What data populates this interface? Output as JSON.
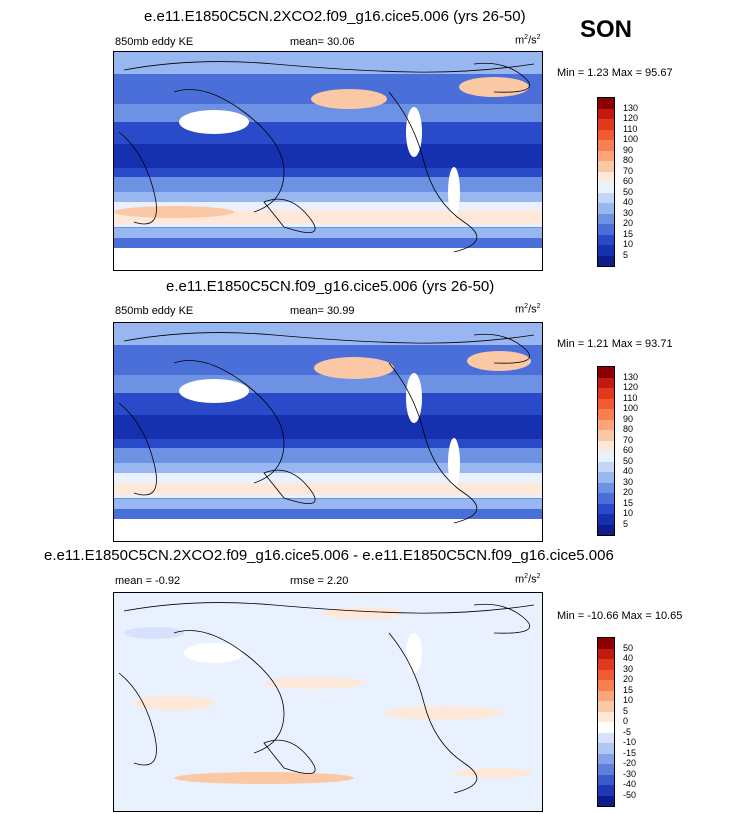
{
  "season": "SON",
  "units_base": "m",
  "units_exp1": "2",
  "units_mid": "/s",
  "units_exp2": "2",
  "panels": [
    {
      "title": "e.e11.E1850C5CN.2XCO2.f09_g16.cice5.006 (yrs 26-50)",
      "label": "850mb eddy KE",
      "mean": "mean=  30.06",
      "minmax": "Min =  1.23 Max =  95.67",
      "levels": [
        "130",
        "120",
        "110",
        "100",
        "90",
        "80",
        "70",
        "60",
        "50",
        "40",
        "30",
        "20",
        "15",
        "10",
        "5"
      ],
      "colors": [
        "#8b0000",
        "#c11a0f",
        "#e0391c",
        "#f25a33",
        "#f77f51",
        "#faa679",
        "#fbc8a6",
        "#fde8da",
        "#e9f1ff",
        "#c3d6f7",
        "#98b6ef",
        "#6e92e3",
        "#4a6fd8",
        "#2a4bc9",
        "#1631b0",
        "#0d1d8a"
      ]
    },
    {
      "title": "e.e11.E1850C5CN.f09_g16.cice5.006 (yrs 26-50)",
      "label": "850mb eddy KE",
      "mean": "mean=  30.99",
      "minmax": "Min =  1.21 Max =  93.71",
      "levels": [
        "130",
        "120",
        "110",
        "100",
        "90",
        "80",
        "70",
        "60",
        "50",
        "40",
        "30",
        "20",
        "15",
        "10",
        "5"
      ],
      "colors": [
        "#8b0000",
        "#c11a0f",
        "#e0391c",
        "#f25a33",
        "#f77f51",
        "#faa679",
        "#fbc8a6",
        "#fde8da",
        "#e9f1ff",
        "#c3d6f7",
        "#98b6ef",
        "#6e92e3",
        "#4a6fd8",
        "#2a4bc9",
        "#1631b0",
        "#0d1d8a"
      ]
    },
    {
      "title": "e.e11.E1850C5CN.2XCO2.f09_g16.cice5.006 - e.e11.E1850C5CN.f09_g16.cice5.006",
      "mean": "mean =  -0.92",
      "rmse": "rmse =   2.20",
      "minmax": "Min = -10.66 Max =  10.65",
      "levels": [
        "50",
        "40",
        "30",
        "20",
        "15",
        "10",
        "5",
        "0",
        "-5",
        "-10",
        "-15",
        "-20",
        "-30",
        "-40",
        "-50"
      ],
      "colors": [
        "#8b0000",
        "#c11a0f",
        "#e0391c",
        "#f25a33",
        "#f77f51",
        "#faa679",
        "#fbc8a6",
        "#fde8da",
        "#ffffff",
        "#d6e2fb",
        "#b0c6f3",
        "#86a3e8",
        "#5e7fdc",
        "#3a5bcd",
        "#1f38b3",
        "#0d1d8a"
      ]
    }
  ]
}
